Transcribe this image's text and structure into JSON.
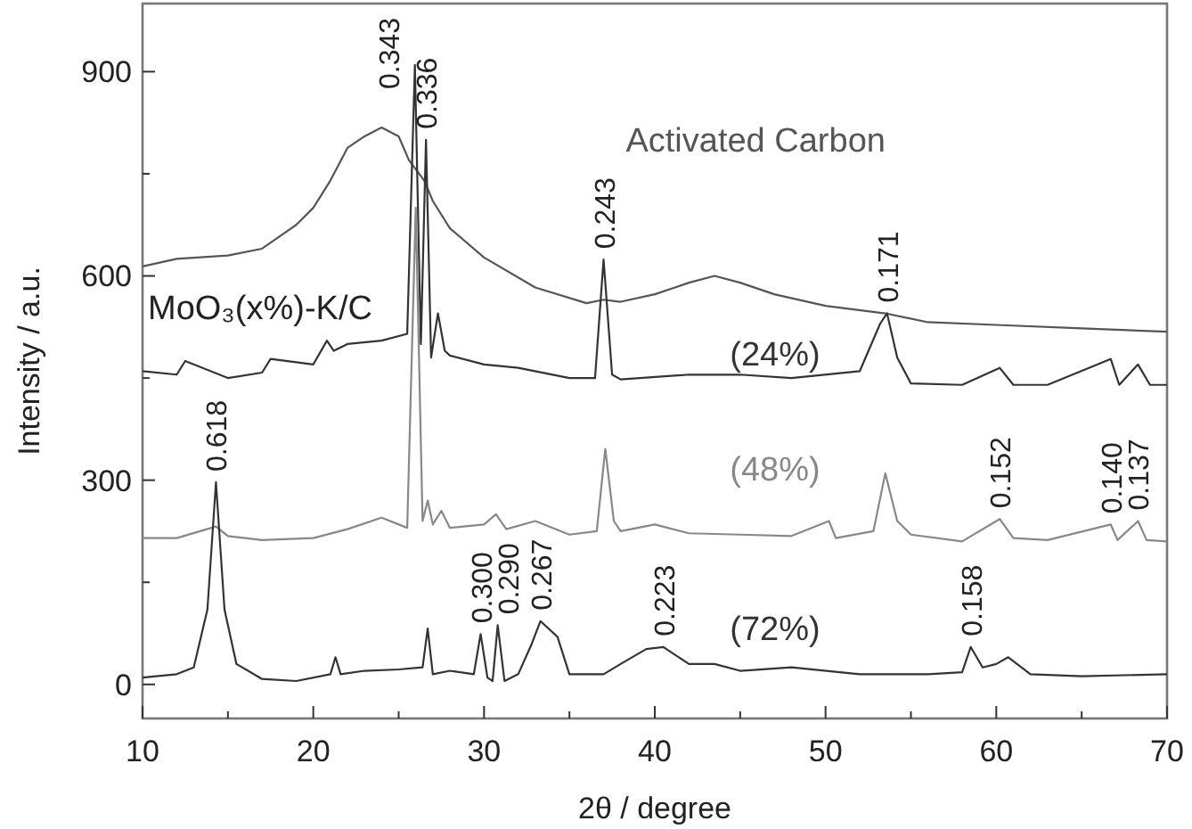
{
  "chart_data": {
    "type": "line",
    "xlabel": "2θ / degree",
    "ylabel": "Intensity / a.u.",
    "xlim": [
      10,
      70
    ],
    "ylim": [
      -50,
      1000
    ],
    "xticks": [
      10,
      {
        "value": 15,
        "label": null
      },
      20,
      {
        "value": 25,
        "label": null
      },
      30,
      {
        "value": 35,
        "label": null
      },
      40,
      {
        "value": 45,
        "label": null
      },
      50,
      {
        "value": 55,
        "label": null
      },
      60,
      {
        "value": 65,
        "label": null
      },
      70
    ],
    "yticks": [
      0,
      {
        "value": 150,
        "label": null
      },
      300,
      {
        "value": 450,
        "label": null
      },
      600,
      {
        "value": 750,
        "label": null
      },
      900
    ],
    "grid": false,
    "legend": false,
    "marker": "none",
    "line_style": "solid",
    "series": [
      {
        "name": "Activated Carbon",
        "color": "#555555",
        "x": [
          10,
          12,
          15,
          17,
          19,
          20,
          21,
          22,
          23,
          24,
          25,
          25.6,
          26.5,
          27,
          28,
          30,
          33,
          36,
          37,
          38,
          40,
          42,
          43.5,
          45,
          47,
          50,
          53.5,
          56,
          60,
          65,
          70
        ],
        "values": [
          614,
          625,
          630,
          640,
          675,
          700,
          740,
          788,
          805,
          818,
          805,
          770,
          740,
          710,
          670,
          627,
          583,
          560,
          565,
          562,
          573,
          590,
          600,
          590,
          573,
          556,
          545,
          532,
          528,
          523,
          518
        ]
      },
      {
        "name": "(24%)",
        "color": "#333333",
        "x": [
          10,
          12,
          12.5,
          15,
          17,
          17.5,
          20,
          20.8,
          21.2,
          22,
          24,
          25.5,
          25.95,
          26.3,
          26.6,
          26.9,
          27.3,
          27.7,
          28,
          30,
          32,
          35,
          36.5,
          37.0,
          37.5,
          38,
          42,
          45,
          48,
          52,
          53.2,
          53.6,
          54.2,
          55,
          58,
          60.2,
          61,
          63,
          66.7,
          67.2,
          68.3,
          69,
          70
        ],
        "values": [
          460,
          455,
          475,
          450,
          458,
          478,
          470,
          505,
          490,
          500,
          505,
          515,
          910,
          500,
          800,
          480,
          545,
          490,
          483,
          470,
          465,
          450,
          450,
          624,
          455,
          448,
          455,
          455,
          450,
          460,
          530,
          545,
          480,
          442,
          440,
          465,
          440,
          440,
          478,
          440,
          470,
          440,
          440
        ]
      },
      {
        "name": "(48%)",
        "color": "#888888",
        "x": [
          10,
          12,
          14.3,
          15,
          17,
          20,
          22,
          24,
          25.5,
          26.0,
          26.4,
          26.7,
          27.0,
          27.5,
          28,
          30,
          30.7,
          31.3,
          33,
          35,
          36.6,
          37.1,
          37.6,
          38,
          40,
          42,
          45,
          48,
          50.2,
          50.6,
          52.8,
          53.5,
          54.2,
          55,
          58,
          60.2,
          61,
          63,
          66.7,
          67.1,
          68.3,
          68.8,
          70
        ],
        "values": [
          215,
          215,
          232,
          218,
          212,
          215,
          228,
          245,
          230,
          700,
          240,
          270,
          235,
          255,
          230,
          235,
          250,
          228,
          240,
          220,
          225,
          346,
          240,
          225,
          235,
          222,
          220,
          218,
          240,
          215,
          225,
          310,
          240,
          220,
          210,
          243,
          215,
          212,
          235,
          212,
          240,
          212,
          210
        ]
      },
      {
        "name": "(72%)",
        "color": "#333333",
        "x": [
          10,
          12,
          13,
          13.8,
          14.3,
          14.8,
          15.5,
          17,
          19,
          21,
          21.3,
          21.6,
          23,
          25,
          26.4,
          26.7,
          27,
          28,
          29.4,
          29.8,
          30.2,
          30.5,
          30.8,
          31.2,
          32,
          32.8,
          33.3,
          34.3,
          35,
          37,
          38,
          39.5,
          40.5,
          42,
          43.5,
          45,
          48,
          52,
          56,
          58,
          58.5,
          59.2,
          60,
          60.7,
          62,
          65,
          70
        ],
        "values": [
          10,
          15,
          25,
          110,
          297,
          110,
          30,
          8,
          5,
          15,
          40,
          15,
          20,
          22,
          25,
          82,
          15,
          20,
          15,
          74,
          10,
          5,
          87,
          5,
          15,
          60,
          93,
          70,
          15,
          15,
          30,
          52,
          55,
          30,
          30,
          20,
          25,
          15,
          15,
          18,
          55,
          25,
          30,
          40,
          15,
          12,
          15
        ]
      }
    ],
    "annotations": [
      "MoO₃(x%)-K/C",
      {
        "text": "0.343",
        "x": 25.95,
        "y": 910
      },
      {
        "text": "0.336",
        "x": 26.6,
        "y": 800
      },
      {
        "text": "0.243",
        "x": 37.0,
        "y": 624
      },
      {
        "text": "0.171",
        "x": 53.6,
        "y": 545
      },
      {
        "text": "0.618",
        "x": 14.3,
        "y": 297
      },
      {
        "text": "0.152",
        "x": 60.2,
        "y": 243
      },
      {
        "text": "0.140",
        "x": 66.7,
        "y": 235
      },
      {
        "text": "0.137",
        "x": 68.3,
        "y": 240
      },
      {
        "text": "0.300",
        "x": 29.8,
        "y": 74
      },
      {
        "text": "0.290",
        "x": 30.8,
        "y": 87
      },
      {
        "text": "0.267",
        "x": 33.3,
        "y": 93
      },
      {
        "text": "0.223",
        "x": 40.5,
        "y": 55
      },
      {
        "text": "0.158",
        "x": 58.5,
        "y": 55
      }
    ]
  }
}
